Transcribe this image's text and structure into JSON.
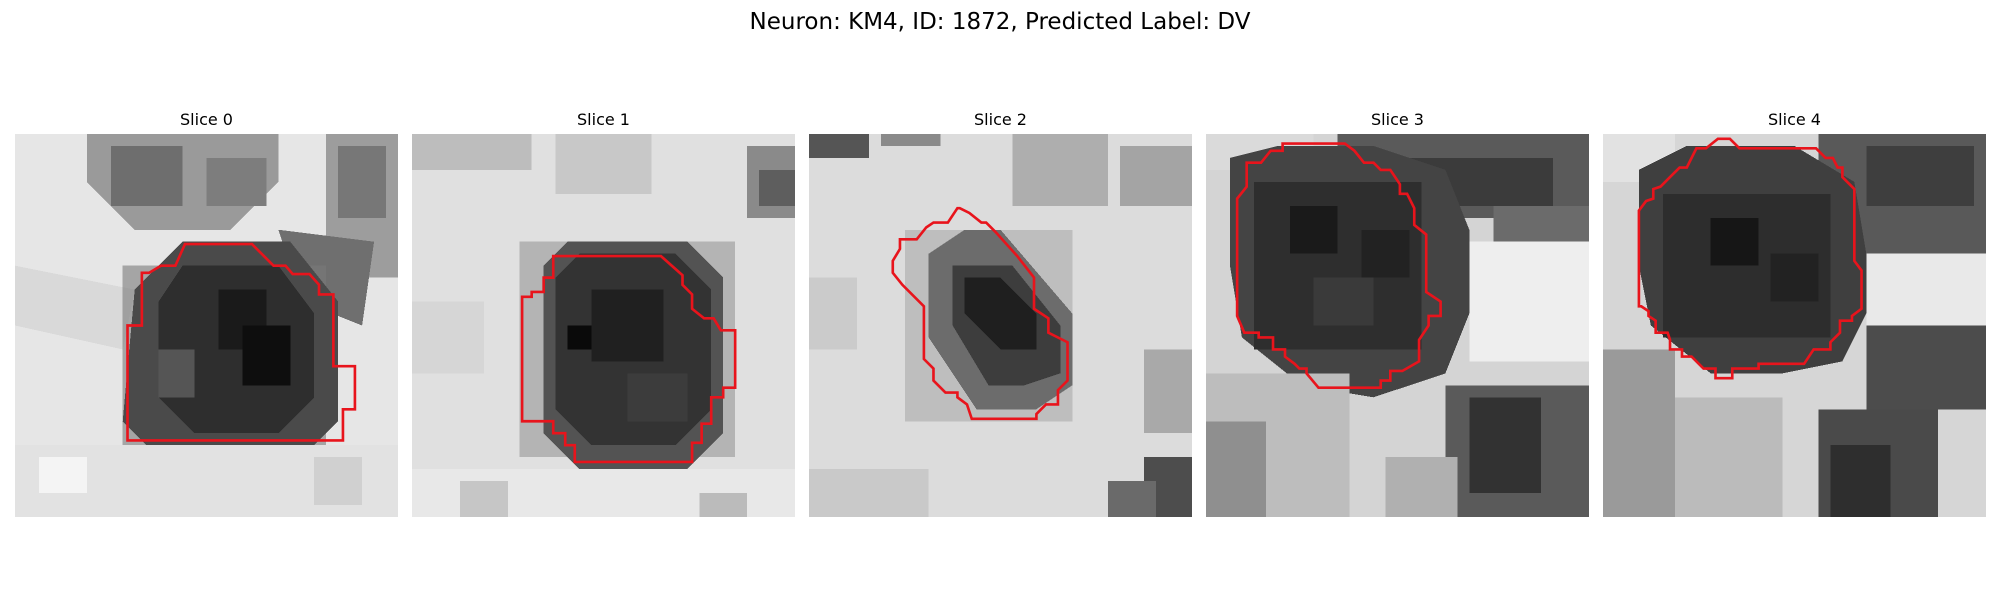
{
  "figure": {
    "suptitle": "Neuron: KM4, ID: 1872, Predicted Label: DV",
    "outline_color": "#e8141c"
  },
  "panels": [
    {
      "title": "Slice 0"
    },
    {
      "title": "Slice 1"
    },
    {
      "title": "Slice 2"
    },
    {
      "title": "Slice 3"
    },
    {
      "title": "Slice 4"
    }
  ]
}
